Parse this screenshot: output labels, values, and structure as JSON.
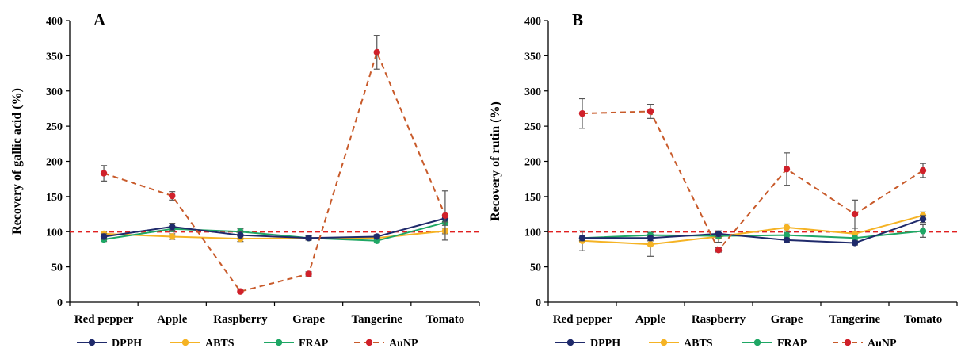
{
  "colors": {
    "DPPH": "#1f2a6b",
    "ABTS": "#f5b324",
    "FRAP": "#1fa765",
    "AuNP": "#c85a2a",
    "AuNP_marker": "#d0202a",
    "reference": "#e02020",
    "error": "#555555"
  },
  "chart_data": [
    {
      "type": "line",
      "panel_label": "A",
      "ylabel": "Recovery of gallic acid (%)",
      "ylim": [
        0,
        400
      ],
      "yticks": [
        0,
        50,
        100,
        150,
        200,
        250,
        300,
        350,
        400
      ],
      "categories": [
        "Red pepper",
        "Apple",
        "Raspberry",
        "Grape",
        "Tangerine",
        "Tomato"
      ],
      "reference_line": 100,
      "legend_position": "bottom",
      "series": [
        {
          "name": "DPPH",
          "style": "solid",
          "values": [
            93,
            107,
            95,
            91,
            93,
            119
          ],
          "errors": [
            4,
            5,
            5,
            3,
            3,
            5
          ]
        },
        {
          "name": "ABTS",
          "style": "solid",
          "values": [
            97,
            93,
            90,
            91,
            91,
            101
          ],
          "errors": [
            3,
            4,
            4,
            3,
            3,
            4
          ]
        },
        {
          "name": "FRAP",
          "style": "solid",
          "values": [
            89,
            104,
            100,
            91,
            87,
            113
          ],
          "errors": [
            3,
            4,
            4,
            3,
            3,
            4
          ]
        },
        {
          "name": "AuNP",
          "style": "dashed",
          "values": [
            183,
            151,
            15,
            40,
            355,
            123
          ],
          "errors": [
            11,
            6,
            2,
            3,
            24,
            35
          ]
        }
      ]
    },
    {
      "type": "line",
      "panel_label": "B",
      "ylabel": "Recovery of rutin (%)",
      "ylim": [
        0,
        400
      ],
      "yticks": [
        0,
        50,
        100,
        150,
        200,
        250,
        300,
        350,
        400
      ],
      "categories": [
        "Red pepper",
        "Apple",
        "Raspberry",
        "Grape",
        "Tangerine",
        "Tomato"
      ],
      "reference_line": 100,
      "legend_position": "bottom",
      "series": [
        {
          "name": "DPPH",
          "style": "solid",
          "values": [
            91,
            91,
            97,
            88,
            84,
            118
          ],
          "errors": [
            4,
            4,
            4,
            3,
            3,
            5
          ]
        },
        {
          "name": "ABTS",
          "style": "solid",
          "values": [
            87,
            82,
            93,
            106,
            97,
            123
          ],
          "errors": [
            14,
            17,
            8,
            5,
            8,
            5
          ]
        },
        {
          "name": "FRAP",
          "style": "solid",
          "values": [
            91,
            95,
            94,
            95,
            91,
            101
          ],
          "errors": [
            4,
            4,
            4,
            4,
            4,
            9
          ]
        },
        {
          "name": "AuNP",
          "style": "dashed",
          "values": [
            268,
            271,
            74,
            189,
            125,
            187
          ],
          "errors": [
            21,
            10,
            3,
            23,
            20,
            10
          ]
        }
      ]
    }
  ]
}
